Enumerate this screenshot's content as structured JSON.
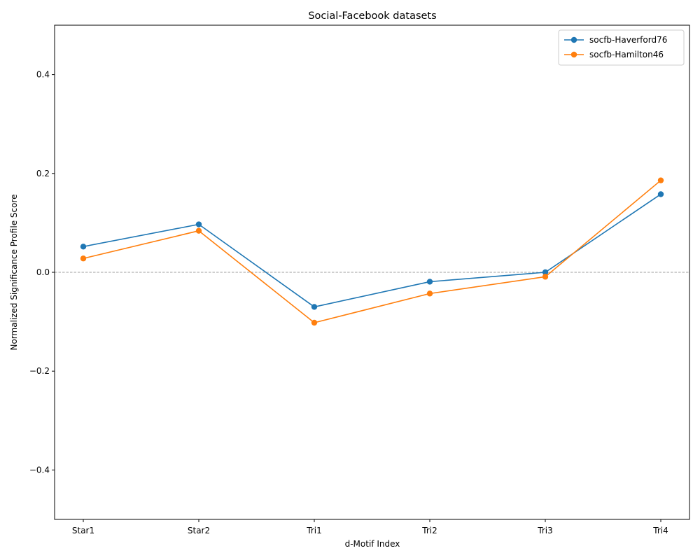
{
  "chart_data": {
    "type": "line",
    "title": "Social-Facebook datasets",
    "xlabel": "d-Motif Index",
    "ylabel": "Normalized Significance Profile Score",
    "categories": [
      "Star1",
      "Star2",
      "Tri1",
      "Tri2",
      "Tri3",
      "Tri4"
    ],
    "ylim": [
      -0.5,
      0.5
    ],
    "yticks": [
      -0.4,
      -0.2,
      0.0,
      0.2,
      0.4
    ],
    "ytick_labels": [
      "−0.4",
      "−0.2",
      "0.0",
      "0.2",
      "0.4"
    ],
    "reference_line": {
      "y": 0.0,
      "style": "dashed",
      "color": "#808080"
    },
    "grid": false,
    "legend_position": "upper-right",
    "series": [
      {
        "name": "socfb-Haverford76",
        "color": "#1f77b4",
        "marker": "circle",
        "values": [
          0.052,
          0.097,
          -0.07,
          -0.019,
          0.0,
          0.158
        ]
      },
      {
        "name": "socfb-Hamilton46",
        "color": "#ff7f0e",
        "marker": "circle",
        "values": [
          0.028,
          0.084,
          -0.102,
          -0.043,
          -0.009,
          0.186
        ]
      }
    ]
  }
}
